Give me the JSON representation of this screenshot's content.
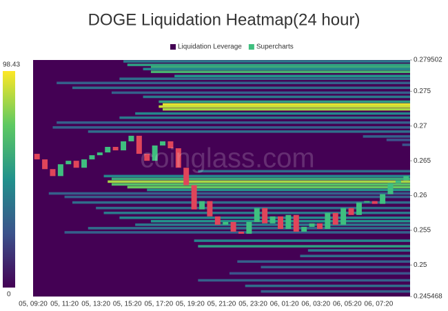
{
  "chart_data": {
    "type": "liquidation-heatmap",
    "title": "DOGE Liquidation Heatmap(24 hour)",
    "watermark": "coinglass.com",
    "legend": [
      {
        "name": "Liquidation Leverage",
        "color": "#440154"
      },
      {
        "name": "Supercharts",
        "color": "#3fbf7f"
      }
    ],
    "colorbar": {
      "min": 0,
      "max": 98.43
    },
    "x_labels": [
      "05, 09:20",
      "05, 11:20",
      "05, 13:20",
      "05, 15:20",
      "05, 17:20",
      "05, 19:20",
      "05, 21:20",
      "05, 23:20",
      "06, 01:20",
      "06, 03:20",
      "06, 05:20",
      "06, 07:20"
    ],
    "ylim": [
      0.245468,
      0.279502
    ],
    "yticks": [
      0.279502,
      0.275,
      0.27,
      0.265,
      0.26,
      0.255,
      0.25,
      0.245468
    ],
    "up_color": "#3fbf7f",
    "down_color": "#e0455a",
    "candles": {
      "open": [
        0.266,
        0.2652,
        0.2638,
        0.2628,
        0.2645,
        0.265,
        0.264,
        0.2652,
        0.2658,
        0.2662,
        0.267,
        0.2665,
        0.2678,
        0.2686,
        0.266,
        0.265,
        0.2672,
        0.2678,
        0.2668,
        0.264,
        0.2615,
        0.258,
        0.2592,
        0.257,
        0.2558,
        0.2562,
        0.2548,
        0.2545,
        0.2562,
        0.2582,
        0.256,
        0.257,
        0.2552,
        0.2572,
        0.2548,
        0.2555,
        0.256,
        0.2552,
        0.2575,
        0.2558,
        0.2582,
        0.2572,
        0.259,
        0.2592,
        0.2588,
        0.2602,
        0.2618,
        0.2622
      ],
      "close": [
        0.2652,
        0.2638,
        0.2628,
        0.2645,
        0.265,
        0.264,
        0.2652,
        0.2658,
        0.2662,
        0.267,
        0.2665,
        0.2678,
        0.2686,
        0.266,
        0.265,
        0.2672,
        0.2678,
        0.2668,
        0.264,
        0.2615,
        0.258,
        0.2592,
        0.257,
        0.2558,
        0.2562,
        0.2548,
        0.2545,
        0.2562,
        0.2582,
        0.256,
        0.257,
        0.2552,
        0.2572,
        0.2548,
        0.2555,
        0.256,
        0.2552,
        0.2575,
        0.2558,
        0.2582,
        0.2572,
        0.259,
        0.2592,
        0.2588,
        0.2602,
        0.2618,
        0.2622,
        0.2628
      ]
    },
    "bands": {
      "prices": [
        0.2793,
        0.2788,
        0.2785,
        0.2782,
        0.2778,
        0.2772,
        0.2768,
        0.2762,
        0.2755,
        0.2748,
        0.2742,
        0.2735,
        0.2731,
        0.2728,
        0.2724,
        0.2718,
        0.2712,
        0.2705,
        0.2698,
        0.2692,
        0.2685,
        0.268,
        0.2673,
        0.2635,
        0.2628,
        0.2624,
        0.262,
        0.2616,
        0.2612,
        0.2608,
        0.2603,
        0.2598,
        0.259,
        0.2582,
        0.2575,
        0.2568,
        0.2563,
        0.2558,
        0.2553,
        0.2547,
        0.2535,
        0.2527,
        0.2521,
        0.2513,
        0.2505,
        0.2497,
        0.2488,
        0.2478,
        0.247,
        0.2462
      ],
      "starts": [
        11.5,
        12,
        15,
        14,
        15,
        18,
        11,
        3,
        5,
        10,
        14,
        16,
        16.5,
        16,
        16.5,
        13,
        11,
        3,
        2.5,
        7,
        42,
        45,
        47,
        21,
        9,
        10,
        9.5,
        10,
        12,
        14.5,
        2,
        4,
        5,
        8,
        9,
        11,
        15,
        13,
        7,
        4,
        20.5,
        21,
        35,
        34,
        26,
        29,
        25,
        21,
        27,
        29
      ],
      "values": [
        40,
        55,
        60,
        45,
        65,
        50,
        35,
        30,
        35,
        30,
        40,
        55,
        95,
        90,
        85,
        45,
        40,
        30,
        30,
        35,
        30,
        25,
        25,
        35,
        45,
        60,
        85,
        70,
        75,
        50,
        30,
        30,
        35,
        35,
        40,
        45,
        50,
        40,
        35,
        30,
        45,
        55,
        40,
        35,
        30,
        30,
        25,
        30,
        35,
        30
      ]
    }
  }
}
